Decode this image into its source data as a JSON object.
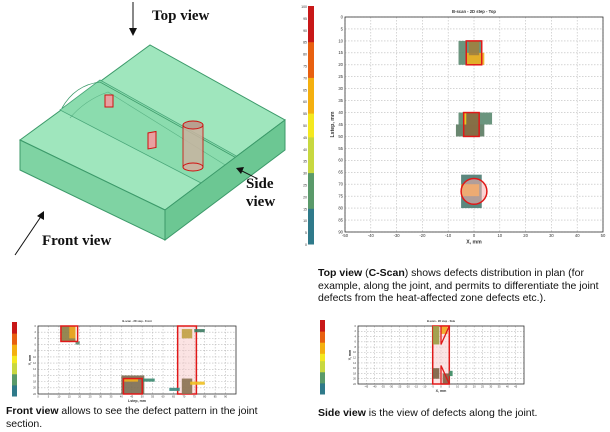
{
  "labels": {
    "top_view": "Top view",
    "side_view_line1": "Side",
    "side_view_line2": "view",
    "front_view": "Front view"
  },
  "top_chart": {
    "title": "B-scan - 2D step - Top",
    "xlabel": "X, mm",
    "ylabel": "Lstep, mm",
    "xticks": [
      -50,
      -40,
      -30,
      -20,
      -10,
      0,
      10,
      20,
      30,
      40,
      50
    ],
    "yticks": [
      0,
      5,
      10,
      15,
      20,
      25,
      30,
      35,
      40,
      45,
      50,
      55,
      60,
      65,
      70,
      75,
      80,
      85,
      90
    ],
    "colorbar_ticks": [
      0,
      5,
      10,
      15,
      20,
      25,
      30,
      35,
      40,
      45,
      50,
      55,
      60,
      65,
      70,
      75,
      80,
      85,
      90,
      95,
      100
    ]
  },
  "top_caption": {
    "bold": "Top view",
    "bold2": "C-Scan",
    "text": " shows defects distribution in plan (for example, along the joint, and permits to differentiate the joint defects from the heat-affected zone defects etc.)."
  },
  "front_chart": {
    "title": "B-scan - 2D step - Front",
    "xlabel": "Lstep, mm",
    "ylabel": "Y, mm",
    "xticks": [
      0,
      5,
      10,
      15,
      20,
      25,
      30,
      35,
      40,
      45,
      50,
      55,
      60,
      65,
      70,
      75,
      80,
      85,
      90
    ],
    "yticks": [
      0,
      2,
      4,
      6,
      8,
      10,
      12,
      14,
      16,
      18,
      20,
      22
    ]
  },
  "front_caption": {
    "bold": "Front view",
    "text": " allows to see the defect pattern in the joint section."
  },
  "side_chart": {
    "title": "B-scan - 2D step - Side",
    "xlabel": "X, mm",
    "ylabel": "Y, mm",
    "xticks": [
      -45,
      -40,
      -35,
      -30,
      -25,
      -20,
      -15,
      -10,
      -5,
      0,
      5,
      10,
      15,
      20,
      25,
      30,
      35,
      40,
      45
    ],
    "yticks": [
      0,
      2,
      4,
      6,
      8,
      10,
      12,
      14,
      16,
      18,
      20,
      22
    ]
  },
  "side_caption": {
    "bold": "Side view",
    "text": " is the view of defects along the joint."
  },
  "colors": {
    "block": "#8fe0b0",
    "block_edge": "#3c9a6a",
    "defect": "#e02020",
    "highlight": "#f7c8c8"
  }
}
